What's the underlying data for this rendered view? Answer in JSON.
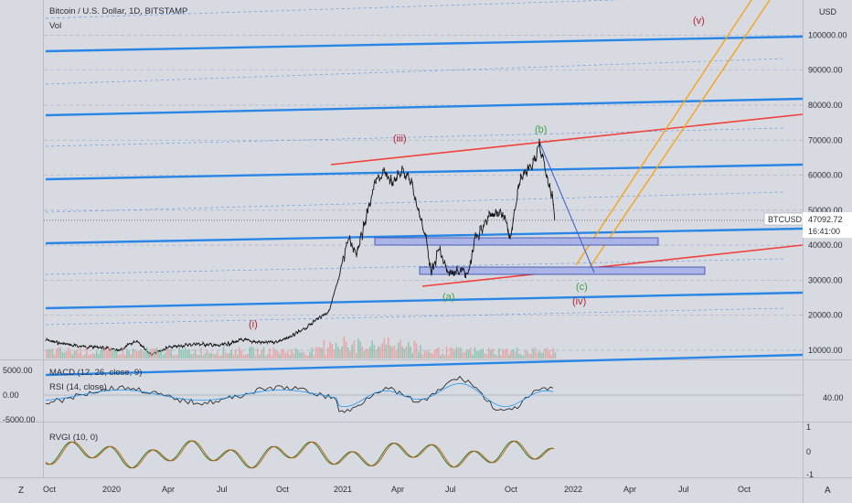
{
  "header": {
    "title": "Bitcoin / U.S. Dollar, 1D, BITSTAMP",
    "volume_label": "Vol"
  },
  "price_axis": {
    "currency": "USD",
    "ticks": [
      "100000.00",
      "90000.00",
      "80000.00",
      "70000.00",
      "60000.00",
      "50000.00",
      "40000.00",
      "30000.00",
      "20000.00",
      "10000.00"
    ],
    "symbol_tag": "BTCUSD",
    "last_price": "47092.72",
    "countdown": "16:41:00"
  },
  "time_axis": {
    "ticks": [
      "Oct",
      "2020",
      "Apr",
      "Jul",
      "Oct",
      "2021",
      "Apr",
      "Jul",
      "Oct",
      "2022",
      "Apr",
      "Jul",
      "Oct"
    ]
  },
  "indicators": {
    "macd_label": "MACD (12, 26, close, 9)",
    "macd_ticks": [
      "5000.00",
      "0.00",
      "-5000.00"
    ],
    "rsi_label": "RSI (14, close)",
    "rsi_tick": "40.00",
    "rvgi_label": "RVGI (10, 0)",
    "rvgi_ticks": [
      "1",
      "0",
      "-1"
    ]
  },
  "wave_labels": {
    "i": "(i)",
    "iii": "(iii)",
    "iv": "(iv)",
    "v": "(v)",
    "a": "(a)",
    "b": "(b)",
    "c": "(c)"
  },
  "footer": {
    "left": "Z",
    "right": "A"
  },
  "colors": {
    "background": "#d7dbe1",
    "blue_level": "#2a86e6",
    "red_channel": "#f0413b",
    "orange_channel": "#f7a21b",
    "price_line": "#111111",
    "red_wave_label": "#b22234",
    "green_wave_label": "#43a047",
    "zone_fill": "#aab4e6",
    "zone_border": "#3246a8"
  },
  "chart_data": {
    "type": "line",
    "title": "Bitcoin / U.S. Dollar, 1D, BITSTAMP",
    "ylabel": "USD",
    "ylim": [
      5000,
      110000
    ],
    "x": [
      "2019-10",
      "2020-01",
      "2020-04",
      "2020-07",
      "2020-10",
      "2021-01",
      "2021-04",
      "2021-07",
      "2021-10",
      "2022-01",
      "2022-04",
      "2022-07",
      "2022-10"
    ],
    "series": [
      {
        "name": "BTCUSD",
        "values": [
          8300,
          7200,
          6800,
          9200,
          10600,
          29000,
          58500,
          34500,
          48000,
          47092,
          null,
          null,
          null
        ]
      }
    ],
    "last_value": 47092.72,
    "grid": true
  }
}
